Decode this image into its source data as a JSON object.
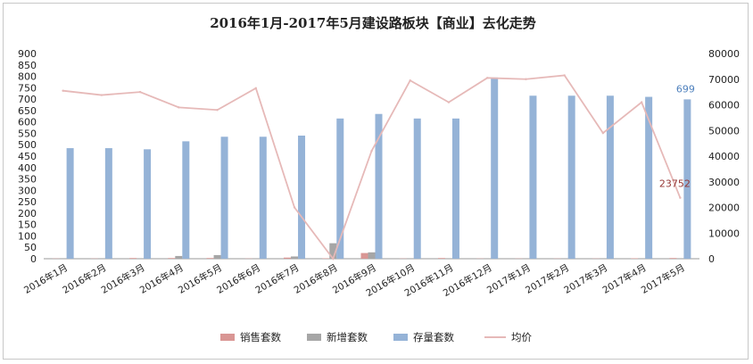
{
  "chart_data": {
    "type": "bar",
    "title": "2016年1月-2017年5月建设路板块【商业】去化走势",
    "categories": [
      "2016年1月",
      "2016年2月",
      "2016年3月",
      "2016年4月",
      "2016年5月",
      "2016年6月",
      "2016年7月",
      "2016年8月",
      "2016年9月",
      "2016年10月",
      "2016年11月",
      "2016年12月",
      "2017年1月",
      "2017年2月",
      "2017年3月",
      "2017年4月",
      "2017年5月"
    ],
    "series": [
      {
        "name": "销售套数",
        "axis": "left",
        "color": "#d99694",
        "values": [
          1,
          1,
          3,
          3,
          3,
          1,
          5,
          2,
          25,
          1,
          3,
          1,
          1,
          1,
          1,
          2,
          3
        ]
      },
      {
        "name": "新增套数",
        "axis": "left",
        "color": "#a6a6a6",
        "values": [
          0,
          0,
          0,
          12,
          16,
          0,
          10,
          68,
          28,
          0,
          0,
          0,
          0,
          0,
          0,
          0,
          0
        ]
      },
      {
        "name": "存量套数",
        "axis": "left",
        "color": "#95b3d7",
        "values": [
          485,
          485,
          480,
          515,
          535,
          535,
          540,
          615,
          635,
          615,
          615,
          795,
          715,
          715,
          715,
          710,
          699
        ]
      },
      {
        "name": "均价",
        "axis": "right",
        "type": "line",
        "color": "#e6b9b8",
        "values": [
          65500,
          63800,
          65000,
          59000,
          58000,
          66500,
          20000,
          0,
          42000,
          69500,
          61000,
          70500,
          70000,
          71500,
          49000,
          61000,
          23752
        ]
      }
    ],
    "ylim": [
      0,
      900
    ],
    "yticks": [
      0,
      50,
      100,
      150,
      200,
      250,
      300,
      350,
      400,
      450,
      500,
      550,
      600,
      650,
      700,
      750,
      800,
      850,
      900
    ],
    "y2lim": [
      0,
      80000
    ],
    "y2ticks": [
      0,
      10000,
      20000,
      30000,
      40000,
      50000,
      60000,
      70000,
      80000
    ],
    "annotations": [
      {
        "text": "699",
        "series": "存量套数",
        "index": 16,
        "color": "#4f81bd"
      },
      {
        "text": "23752",
        "series": "均价",
        "index": 16,
        "color": "#953735"
      }
    ],
    "legend_position": "bottom",
    "grid": false
  }
}
